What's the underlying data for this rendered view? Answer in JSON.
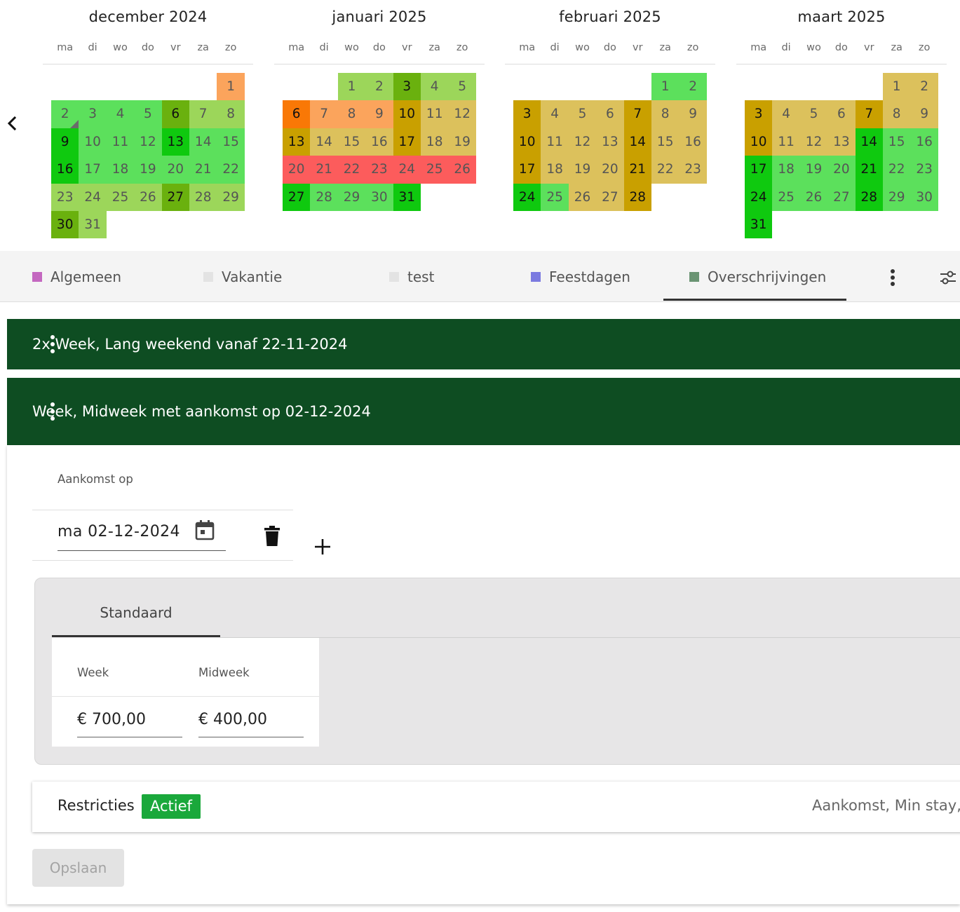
{
  "calendar": {
    "nav": {
      "prev_icon": "chevron-left-icon"
    },
    "weekdays": [
      "ma",
      "di",
      "wo",
      "do",
      "vr",
      "za",
      "zo"
    ],
    "legend_colors": {
      "G": "#5ce05c",
      "D": "#0fc90f",
      "L": "#9cd65a",
      "O": "#6ab10e",
      "Y": "#dcc15c",
      "B": "#c9a000",
      "P": "#fba45c",
      "R": "#fc5c5c",
      "N": "#f97806"
    },
    "months": [
      {
        "title": "december 2024",
        "offset": 6,
        "days": [
          {
            "d": "1",
            "c": "P"
          },
          {
            "d": "2",
            "c": "G",
            "mark": true
          },
          {
            "d": "3",
            "c": "G"
          },
          {
            "d": "4",
            "c": "G"
          },
          {
            "d": "5",
            "c": "G"
          },
          {
            "d": "6",
            "c": "O",
            "dark": true
          },
          {
            "d": "7",
            "c": "L"
          },
          {
            "d": "8",
            "c": "L"
          },
          {
            "d": "9",
            "c": "D",
            "dark": true
          },
          {
            "d": "10",
            "c": "G"
          },
          {
            "d": "11",
            "c": "G"
          },
          {
            "d": "12",
            "c": "G"
          },
          {
            "d": "13",
            "c": "D",
            "dark": true
          },
          {
            "d": "14",
            "c": "G"
          },
          {
            "d": "15",
            "c": "G"
          },
          {
            "d": "16",
            "c": "D",
            "dark": true
          },
          {
            "d": "17",
            "c": "G"
          },
          {
            "d": "18",
            "c": "G"
          },
          {
            "d": "19",
            "c": "G"
          },
          {
            "d": "20",
            "c": "G"
          },
          {
            "d": "21",
            "c": "G"
          },
          {
            "d": "22",
            "c": "G"
          },
          {
            "d": "23",
            "c": "L"
          },
          {
            "d": "24",
            "c": "L"
          },
          {
            "d": "25",
            "c": "L"
          },
          {
            "d": "26",
            "c": "L"
          },
          {
            "d": "27",
            "c": "O",
            "dark": true
          },
          {
            "d": "28",
            "c": "L"
          },
          {
            "d": "29",
            "c": "L"
          },
          {
            "d": "30",
            "c": "O",
            "dark": true
          },
          {
            "d": "31",
            "c": "L"
          }
        ]
      },
      {
        "title": "januari 2025",
        "offset": 2,
        "days": [
          {
            "d": "1",
            "c": "L"
          },
          {
            "d": "2",
            "c": "L"
          },
          {
            "d": "3",
            "c": "O",
            "dark": true
          },
          {
            "d": "4",
            "c": "L"
          },
          {
            "d": "5",
            "c": "L"
          },
          {
            "d": "6",
            "c": "N",
            "dark": true
          },
          {
            "d": "7",
            "c": "P"
          },
          {
            "d": "8",
            "c": "P"
          },
          {
            "d": "9",
            "c": "P"
          },
          {
            "d": "10",
            "c": "B",
            "dark": true
          },
          {
            "d": "11",
            "c": "Y"
          },
          {
            "d": "12",
            "c": "Y"
          },
          {
            "d": "13",
            "c": "B",
            "dark": true
          },
          {
            "d": "14",
            "c": "Y"
          },
          {
            "d": "15",
            "c": "Y"
          },
          {
            "d": "16",
            "c": "Y"
          },
          {
            "d": "17",
            "c": "B",
            "dark": true
          },
          {
            "d": "18",
            "c": "Y"
          },
          {
            "d": "19",
            "c": "Y"
          },
          {
            "d": "20",
            "c": "R"
          },
          {
            "d": "21",
            "c": "R"
          },
          {
            "d": "22",
            "c": "R"
          },
          {
            "d": "23",
            "c": "R"
          },
          {
            "d": "24",
            "c": "R"
          },
          {
            "d": "25",
            "c": "R"
          },
          {
            "d": "26",
            "c": "R"
          },
          {
            "d": "27",
            "c": "D",
            "dark": true
          },
          {
            "d": "28",
            "c": "G"
          },
          {
            "d": "29",
            "c": "G"
          },
          {
            "d": "30",
            "c": "G"
          },
          {
            "d": "31",
            "c": "D",
            "dark": true
          }
        ]
      },
      {
        "title": "februari 2025",
        "offset": 5,
        "days": [
          {
            "d": "1",
            "c": "G"
          },
          {
            "d": "2",
            "c": "G"
          },
          {
            "d": "3",
            "c": "B",
            "dark": true
          },
          {
            "d": "4",
            "c": "Y"
          },
          {
            "d": "5",
            "c": "Y"
          },
          {
            "d": "6",
            "c": "Y"
          },
          {
            "d": "7",
            "c": "B",
            "dark": true
          },
          {
            "d": "8",
            "c": "Y"
          },
          {
            "d": "9",
            "c": "Y"
          },
          {
            "d": "10",
            "c": "B",
            "dark": true
          },
          {
            "d": "11",
            "c": "Y"
          },
          {
            "d": "12",
            "c": "Y"
          },
          {
            "d": "13",
            "c": "Y"
          },
          {
            "d": "14",
            "c": "B",
            "dark": true
          },
          {
            "d": "15",
            "c": "Y"
          },
          {
            "d": "16",
            "c": "Y"
          },
          {
            "d": "17",
            "c": "B",
            "dark": true
          },
          {
            "d": "18",
            "c": "Y"
          },
          {
            "d": "19",
            "c": "Y"
          },
          {
            "d": "20",
            "c": "Y"
          },
          {
            "d": "21",
            "c": "B",
            "dark": true
          },
          {
            "d": "22",
            "c": "Y"
          },
          {
            "d": "23",
            "c": "Y"
          },
          {
            "d": "24",
            "c": "D",
            "dark": true
          },
          {
            "d": "25",
            "c": "G"
          },
          {
            "d": "26",
            "c": "Y"
          },
          {
            "d": "27",
            "c": "Y"
          },
          {
            "d": "28",
            "c": "B",
            "dark": true
          }
        ]
      },
      {
        "title": "maart 2025",
        "offset": 5,
        "days": [
          {
            "d": "1",
            "c": "Y"
          },
          {
            "d": "2",
            "c": "Y"
          },
          {
            "d": "3",
            "c": "B",
            "dark": true
          },
          {
            "d": "4",
            "c": "Y"
          },
          {
            "d": "5",
            "c": "Y"
          },
          {
            "d": "6",
            "c": "Y"
          },
          {
            "d": "7",
            "c": "B",
            "dark": true
          },
          {
            "d": "8",
            "c": "Y"
          },
          {
            "d": "9",
            "c": "Y"
          },
          {
            "d": "10",
            "c": "B",
            "dark": true
          },
          {
            "d": "11",
            "c": "Y"
          },
          {
            "d": "12",
            "c": "Y"
          },
          {
            "d": "13",
            "c": "Y"
          },
          {
            "d": "14",
            "c": "D",
            "dark": true
          },
          {
            "d": "15",
            "c": "G"
          },
          {
            "d": "16",
            "c": "G"
          },
          {
            "d": "17",
            "c": "D",
            "dark": true
          },
          {
            "d": "18",
            "c": "G"
          },
          {
            "d": "19",
            "c": "G"
          },
          {
            "d": "20",
            "c": "G"
          },
          {
            "d": "21",
            "c": "D",
            "dark": true
          },
          {
            "d": "22",
            "c": "G"
          },
          {
            "d": "23",
            "c": "G"
          },
          {
            "d": "24",
            "c": "D",
            "dark": true
          },
          {
            "d": "25",
            "c": "G"
          },
          {
            "d": "26",
            "c": "G"
          },
          {
            "d": "27",
            "c": "G"
          },
          {
            "d": "28",
            "c": "D",
            "dark": true
          },
          {
            "d": "29",
            "c": "G"
          },
          {
            "d": "30",
            "c": "G"
          },
          {
            "d": "31",
            "c": "D",
            "dark": true
          }
        ]
      }
    ]
  },
  "tabs": {
    "items": [
      {
        "label": "Algemeen",
        "color": "#c468c0"
      },
      {
        "label": "Vakantie",
        "color": "#e3e3e3"
      },
      {
        "label": "test",
        "color": "#e3e3e3"
      },
      {
        "label": "Feestdagen",
        "color": "#7b7ae0"
      },
      {
        "label": "Overschrijvingen",
        "color": "#6a9473",
        "active": true
      }
    ],
    "more_icon": "more-vert-icon",
    "filter_icon": "tune-icon"
  },
  "panels": {
    "first": {
      "title": "2x Week, Lang weekend vanaf 22-11-2024",
      "menu_icon": "more-vert-icon"
    },
    "second": {
      "title": "Week, Midweek met aankomst op 02-12-2024",
      "menu_icon": "more-vert-icon"
    }
  },
  "form": {
    "arrival_label": "Aankomst op",
    "arrival_value": "ma 02-12-2024",
    "calendar_icon": "calendar-icon",
    "delete_icon": "trash-icon",
    "add_icon": "plus-icon",
    "rate_tab": "Standaard",
    "columns": [
      "Week",
      "Midweek"
    ],
    "prices": [
      "€ 700,00",
      "€ 400,00"
    ],
    "restrictions_label": "Restricties",
    "restrictions_status": "Actief",
    "restrictions_summary": "Aankomst, Min stay,",
    "save_label": "Opslaan"
  }
}
